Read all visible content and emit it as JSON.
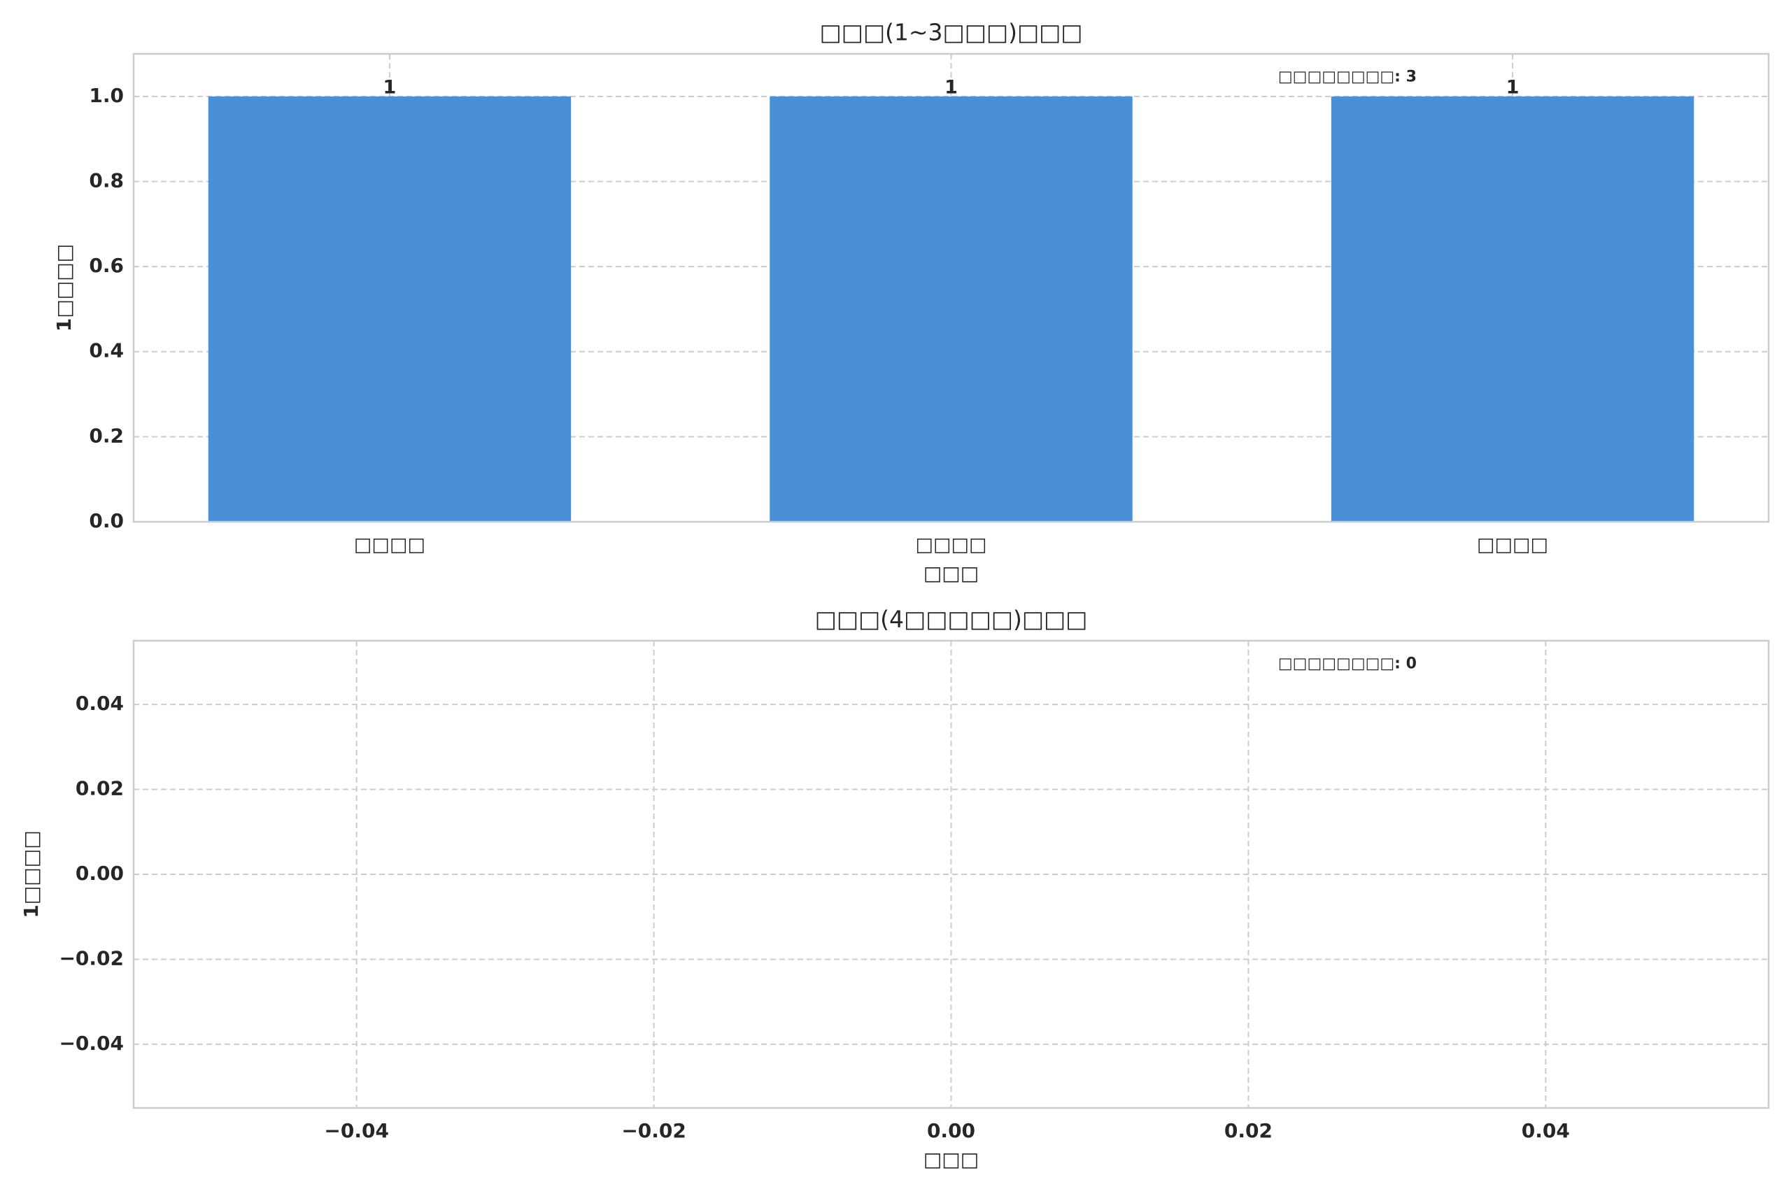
{
  "chart_data": [
    {
      "type": "bar",
      "title": "□□□(1~3□□□)□□□",
      "xlabel": "□□□",
      "ylabel": "1□□□□",
      "categories": [
        "□□□□",
        "□□□□",
        "□□□□"
      ],
      "values": [
        1,
        1,
        1
      ],
      "color": "#4a90d9",
      "ylim": [
        0,
        1.1
      ],
      "yticks": [
        {
          "value": 0,
          "label": "0.0"
        },
        {
          "value": 0.2,
          "label": "0.2"
        },
        {
          "value": 0.4,
          "label": "0.4"
        },
        {
          "value": 0.6,
          "label": "0.6"
        },
        {
          "value": 0.8,
          "label": "0.8"
        },
        {
          "value": 1,
          "label": "1.0"
        }
      ],
      "annotation": "□□□□□□□□: 3",
      "grid": true
    },
    {
      "type": "bar",
      "title": "□□□(4□□□□□)□□□",
      "xlabel": "□□□",
      "ylabel": "1□□□□",
      "categories": [],
      "values": [],
      "color": "#4a90d9",
      "xlim": [
        -0.055,
        0.055
      ],
      "ylim": [
        -0.055,
        0.055
      ],
      "xticks": [
        {
          "value": -0.04,
          "label": "−0.04"
        },
        {
          "value": -0.02,
          "label": "−0.02"
        },
        {
          "value": 0,
          "label": "0.00"
        },
        {
          "value": 0.02,
          "label": "0.02"
        },
        {
          "value": 0.04,
          "label": "0.04"
        }
      ],
      "yticks": [
        {
          "value": -0.04,
          "label": "−0.04"
        },
        {
          "value": -0.02,
          "label": "−0.02"
        },
        {
          "value": 0,
          "label": "0.00"
        },
        {
          "value": 0.02,
          "label": "0.02"
        },
        {
          "value": 0.04,
          "label": "0.04"
        }
      ],
      "annotation": "□□□□□□□□: 0",
      "grid": true
    }
  ]
}
